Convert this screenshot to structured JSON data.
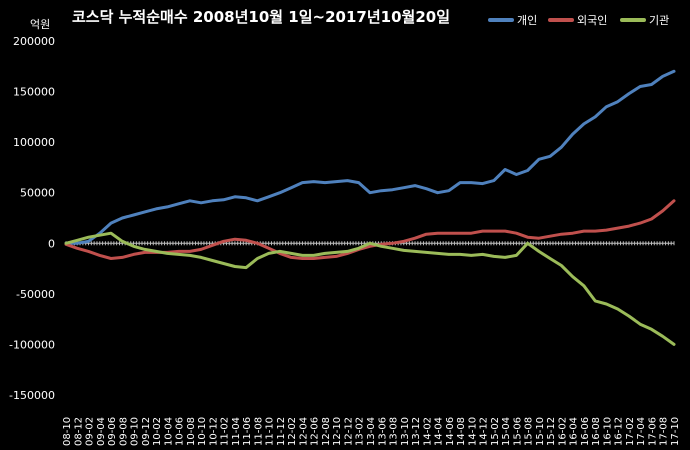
{
  "chart_data": {
    "type": "line",
    "title": "코스닥  누적순매수 2008년10월 1일~2017년10월20일",
    "unit_label": "억원",
    "ylim": [
      -150000,
      200000
    ],
    "yticks": [
      200000,
      150000,
      100000,
      50000,
      0,
      -50000,
      -100000,
      -150000
    ],
    "x_labels": [
      "08-10",
      "08-12",
      "09-02",
      "09-04",
      "09-06",
      "09-08",
      "09-10",
      "09-12",
      "10-02",
      "10-04",
      "10-06",
      "10-08",
      "10-10",
      "10-12",
      "11-02",
      "11-04",
      "11-06",
      "11-08",
      "11-10",
      "11-12",
      "12-02",
      "12-04",
      "12-06",
      "12-08",
      "12-10",
      "12-12",
      "13-02",
      "13-04",
      "13-06",
      "13-08",
      "13-10",
      "13-12",
      "14-02",
      "14-04",
      "14-06",
      "14-08",
      "14-10",
      "14-12",
      "15-02",
      "15-04",
      "15-06",
      "15-08",
      "15-10",
      "15-12",
      "16-02",
      "16-04",
      "16-06",
      "16-08",
      "16-10",
      "16-12",
      "17-02",
      "17-04",
      "17-06",
      "17-08",
      "17-10"
    ],
    "grid": false,
    "legend_position": "top-right",
    "series": [
      {
        "name": "개인",
        "color": "#4f81bd",
        "points": [
          [
            "08-10",
            0
          ],
          [
            "08-12",
            0
          ],
          [
            "09-02",
            2000
          ],
          [
            "09-04",
            10000
          ],
          [
            "09-06",
            20000
          ],
          [
            "09-08",
            25000
          ],
          [
            "09-10",
            28000
          ],
          [
            "09-12",
            31000
          ],
          [
            "10-02",
            34000
          ],
          [
            "10-04",
            36000
          ],
          [
            "10-06",
            39000
          ],
          [
            "10-08",
            42000
          ],
          [
            "10-10",
            40000
          ],
          [
            "10-12",
            42000
          ],
          [
            "11-02",
            43000
          ],
          [
            "11-04",
            46000
          ],
          [
            "11-06",
            45000
          ],
          [
            "11-08",
            42000
          ],
          [
            "11-10",
            46000
          ],
          [
            "11-12",
            50000
          ],
          [
            "12-02",
            55000
          ],
          [
            "12-04",
            60000
          ],
          [
            "12-06",
            61000
          ],
          [
            "12-08",
            60000
          ],
          [
            "12-10",
            61000
          ],
          [
            "12-12",
            62000
          ],
          [
            "13-02",
            60000
          ],
          [
            "13-04",
            50000
          ],
          [
            "13-06",
            52000
          ],
          [
            "13-08",
            53000
          ],
          [
            "13-10",
            55000
          ],
          [
            "13-12",
            57000
          ],
          [
            "14-02",
            54000
          ],
          [
            "14-04",
            50000
          ],
          [
            "14-06",
            52000
          ],
          [
            "14-08",
            60000
          ],
          [
            "14-10",
            60000
          ],
          [
            "14-12",
            59000
          ],
          [
            "15-02",
            62000
          ],
          [
            "15-04",
            73000
          ],
          [
            "15-06",
            68000
          ],
          [
            "15-08",
            72000
          ],
          [
            "15-10",
            83000
          ],
          [
            "15-12",
            86000
          ],
          [
            "16-02",
            95000
          ],
          [
            "16-04",
            108000
          ],
          [
            "16-06",
            118000
          ],
          [
            "16-08",
            125000
          ],
          [
            "16-10",
            135000
          ],
          [
            "16-12",
            140000
          ],
          [
            "17-02",
            148000
          ],
          [
            "17-04",
            155000
          ],
          [
            "17-06",
            157000
          ],
          [
            "17-08",
            165000
          ],
          [
            "17-10",
            170000
          ]
        ]
      },
      {
        "name": "외국인",
        "color": "#c0504d",
        "points": [
          [
            "08-10",
            -1000
          ],
          [
            "08-12",
            -5000
          ],
          [
            "09-02",
            -8000
          ],
          [
            "09-04",
            -12000
          ],
          [
            "09-06",
            -15000
          ],
          [
            "09-08",
            -14000
          ],
          [
            "09-10",
            -11000
          ],
          [
            "09-12",
            -9000
          ],
          [
            "10-02",
            -9000
          ],
          [
            "10-04",
            -9000
          ],
          [
            "10-06",
            -8000
          ],
          [
            "10-08",
            -8000
          ],
          [
            "10-10",
            -6000
          ],
          [
            "10-12",
            -2000
          ],
          [
            "11-02",
            2000
          ],
          [
            "11-04",
            4000
          ],
          [
            "11-06",
            3000
          ],
          [
            "11-08",
            0
          ],
          [
            "11-10",
            -5000
          ],
          [
            "11-12",
            -10000
          ],
          [
            "12-02",
            -14000
          ],
          [
            "12-04",
            -15000
          ],
          [
            "12-06",
            -15000
          ],
          [
            "12-08",
            -14000
          ],
          [
            "12-10",
            -13000
          ],
          [
            "12-12",
            -10000
          ],
          [
            "13-02",
            -6000
          ],
          [
            "13-04",
            -3000
          ],
          [
            "13-06",
            -1000
          ],
          [
            "13-08",
            0
          ],
          [
            "13-10",
            2000
          ],
          [
            "13-12",
            5000
          ],
          [
            "14-02",
            9000
          ],
          [
            "14-04",
            10000
          ],
          [
            "14-06",
            10000
          ],
          [
            "14-08",
            10000
          ],
          [
            "14-10",
            10000
          ],
          [
            "14-12",
            12000
          ],
          [
            "15-02",
            12000
          ],
          [
            "15-04",
            12000
          ],
          [
            "15-06",
            10000
          ],
          [
            "15-08",
            6000
          ],
          [
            "15-10",
            5000
          ],
          [
            "15-12",
            7000
          ],
          [
            "16-02",
            9000
          ],
          [
            "16-04",
            10000
          ],
          [
            "16-06",
            12000
          ],
          [
            "16-08",
            12000
          ],
          [
            "16-10",
            13000
          ],
          [
            "16-12",
            15000
          ],
          [
            "17-02",
            17000
          ],
          [
            "17-04",
            20000
          ],
          [
            "17-06",
            24000
          ],
          [
            "17-08",
            32000
          ],
          [
            "17-10",
            42000
          ]
        ]
      },
      {
        "name": "기관",
        "color": "#9bbb59",
        "points": [
          [
            "08-10",
            0
          ],
          [
            "08-12",
            3000
          ],
          [
            "09-02",
            6000
          ],
          [
            "09-04",
            8000
          ],
          [
            "09-06",
            10000
          ],
          [
            "09-08",
            2000
          ],
          [
            "09-10",
            -3000
          ],
          [
            "09-12",
            -6000
          ],
          [
            "10-02",
            -8000
          ],
          [
            "10-04",
            -10000
          ],
          [
            "10-06",
            -11000
          ],
          [
            "10-08",
            -12000
          ],
          [
            "10-10",
            -14000
          ],
          [
            "10-12",
            -17000
          ],
          [
            "11-02",
            -20000
          ],
          [
            "11-04",
            -23000
          ],
          [
            "11-06",
            -24000
          ],
          [
            "11-08",
            -15000
          ],
          [
            "11-10",
            -10000
          ],
          [
            "11-12",
            -8000
          ],
          [
            "12-02",
            -10000
          ],
          [
            "12-04",
            -12000
          ],
          [
            "12-06",
            -12000
          ],
          [
            "12-08",
            -10000
          ],
          [
            "12-10",
            -9000
          ],
          [
            "12-12",
            -8000
          ],
          [
            "13-02",
            -5000
          ],
          [
            "13-04",
            0
          ],
          [
            "13-06",
            -3000
          ],
          [
            "13-08",
            -5000
          ],
          [
            "13-10",
            -7000
          ],
          [
            "13-12",
            -8000
          ],
          [
            "14-02",
            -9000
          ],
          [
            "14-04",
            -10000
          ],
          [
            "14-06",
            -11000
          ],
          [
            "14-08",
            -11000
          ],
          [
            "14-10",
            -12000
          ],
          [
            "14-12",
            -11000
          ],
          [
            "15-02",
            -13000
          ],
          [
            "15-04",
            -14000
          ],
          [
            "15-06",
            -12000
          ],
          [
            "15-08",
            0
          ],
          [
            "15-10",
            -8000
          ],
          [
            "15-12",
            -15000
          ],
          [
            "16-02",
            -22000
          ],
          [
            "16-04",
            -33000
          ],
          [
            "16-06",
            -42000
          ],
          [
            "16-08",
            -57000
          ],
          [
            "16-10",
            -60000
          ],
          [
            "16-12",
            -65000
          ],
          [
            "17-02",
            -72000
          ],
          [
            "17-04",
            -80000
          ],
          [
            "17-06",
            -85000
          ],
          [
            "17-08",
            -92000
          ],
          [
            "17-10",
            -100000
          ]
        ]
      }
    ]
  }
}
